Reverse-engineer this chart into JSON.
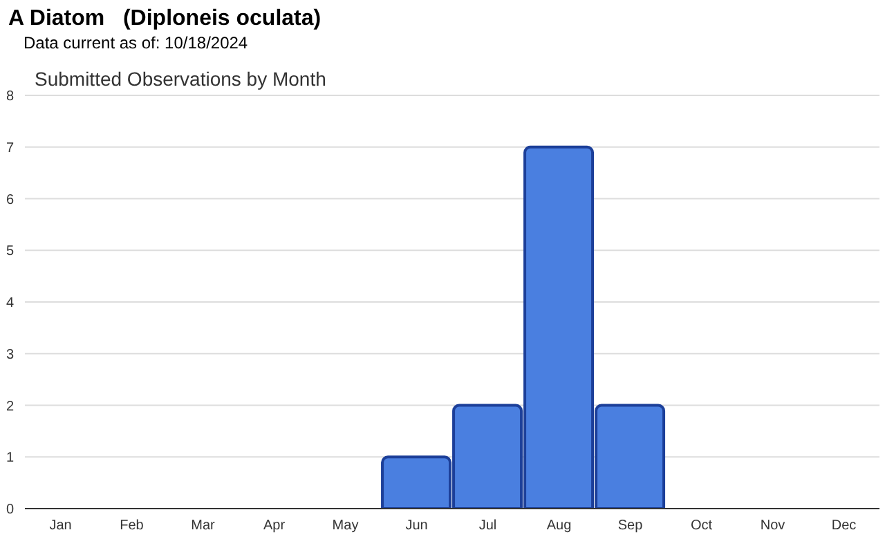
{
  "chart_data": {
    "type": "bar",
    "title": "A Diatom   (Diploneis oculata)",
    "subtitle": "Data current as of: 10/18/2024",
    "annotations": [
      "Submitted Observations by Month"
    ],
    "categories": [
      "Jan",
      "Feb",
      "Mar",
      "Apr",
      "May",
      "Jun",
      "Jul",
      "Aug",
      "Sep",
      "Oct",
      "Nov",
      "Dec"
    ],
    "values": [
      0,
      0,
      0,
      0,
      0,
      1,
      2,
      7,
      2,
      0,
      0,
      0
    ],
    "color": "#4a7fe0",
    "ylim": [
      0,
      8
    ],
    "yticks": [
      0,
      1,
      2,
      3,
      4,
      5,
      6,
      7,
      8
    ],
    "grid": "y"
  }
}
